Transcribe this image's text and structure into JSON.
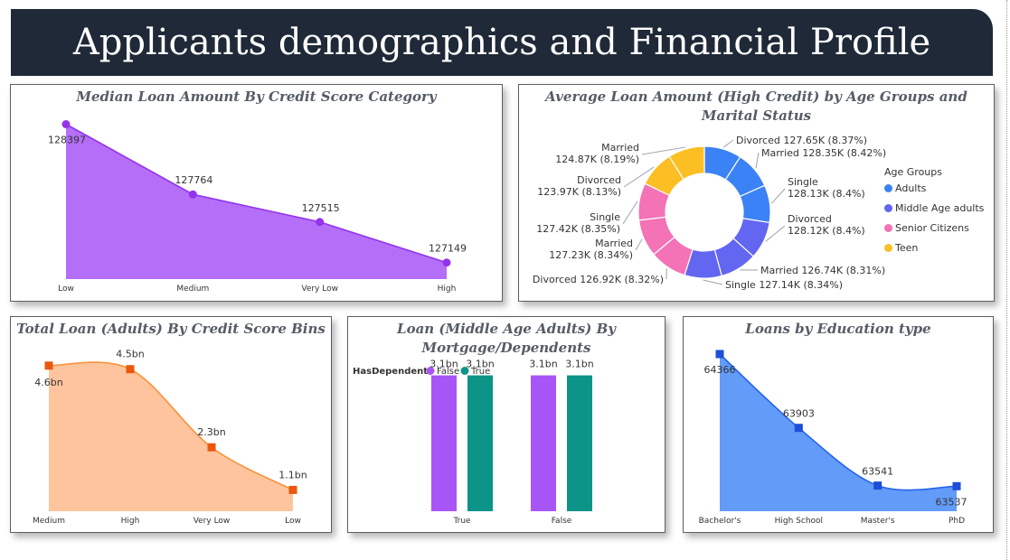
{
  "header": {
    "title": "Applicants demographics and Financial Profile"
  },
  "chart_data": [
    {
      "type": "area",
      "title": "Median Loan Amount By Credit Score Category",
      "categories": [
        "Low",
        "Medium",
        "Very Low",
        "High"
      ],
      "values": [
        128397,
        127764,
        127515,
        127149
      ],
      "labels": [
        "128397",
        "127764",
        "127515",
        "127149"
      ],
      "ylim": [
        127000,
        128450
      ],
      "color": "#a855f7"
    },
    {
      "type": "pie",
      "title": "Average Loan Amount (High Credit) by Age Groups and Marital Status",
      "legend_title": "Age Groups",
      "groups": [
        {
          "name": "Adults",
          "color": "#3b82f6"
        },
        {
          "name": "Middle Age adults",
          "color": "#6366f1"
        },
        {
          "name": "Senior Citizens",
          "color": "#f472b6"
        },
        {
          "name": "Teen",
          "color": "#fbbf24"
        }
      ],
      "slices": [
        {
          "group": "Adults",
          "status": "Divorced",
          "value": 127.65,
          "label": "Divorced 127.65K (8.37%)"
        },
        {
          "group": "Adults",
          "status": "Married",
          "value": 128.35,
          "label": "Married 128.35K (8.42%)"
        },
        {
          "group": "Adults",
          "status": "Single",
          "value": 128.13,
          "label": "Single 128.13K (8.4%)"
        },
        {
          "group": "Middle Age adults",
          "status": "Divorced",
          "value": 128.12,
          "label": "Divorced 128.12K (8.4%)"
        },
        {
          "group": "Middle Age adults",
          "status": "Married",
          "value": 126.74,
          "label": "Married 126.74K (8.31%)"
        },
        {
          "group": "Middle Age adults",
          "status": "Single",
          "value": 127.14,
          "label": "Single 127.14K (8.34%)"
        },
        {
          "group": "Senior Citizens",
          "status": "Divorced",
          "value": 126.92,
          "label": "Divorced 126.92K (8.32%)"
        },
        {
          "group": "Senior Citizens",
          "status": "Married",
          "value": 127.23,
          "label": "Married 127.23K (8.34%)"
        },
        {
          "group": "Senior Citizens",
          "status": "Single",
          "value": 127.42,
          "label": "Single 127.42K (8.35%)"
        },
        {
          "group": "Teen",
          "status": "Divorced",
          "value": 123.97,
          "label": "Divorced 123.97K (8.13%)"
        },
        {
          "group": "Teen",
          "status": "Married",
          "value": 124.87,
          "label": "Married 124.87K (8.19%)"
        },
        {
          "group": "Teen",
          "status": "Single",
          "value": 0,
          "label": ""
        }
      ],
      "slice_labels": [
        [
          "Divorced 127.65K (8.37%)"
        ],
        [
          "Married 128.35K (8.42%)"
        ],
        [
          "Single",
          "128.13K (8.4%)"
        ],
        [
          "Divorced",
          "128.12K (8.4%)"
        ],
        [
          "Married 126.74K (8.31%)"
        ],
        [
          "Single 127.14K (8.34%)"
        ],
        [
          "Divorced 126.92K (8.32%)"
        ],
        [
          "Married",
          "127.23K (8.34%)"
        ],
        [
          "Single",
          "127.42K (8.35%)"
        ],
        [
          "Divorced",
          "123.97K (8.13%)"
        ],
        [
          "Married",
          "124.87K (8.19%)"
        ]
      ]
    },
    {
      "type": "area",
      "title": "Total Loan (Adults) By Credit Score Bins",
      "categories": [
        "Medium",
        "High",
        "Very Low",
        "Low"
      ],
      "values": [
        4.6,
        4.5,
        2.3,
        1.1
      ],
      "labels": [
        "4.6bn",
        "4.5bn",
        "2.3bn",
        "1.1bn"
      ],
      "ylim": [
        0.5,
        4.9
      ],
      "color": "#f97316"
    },
    {
      "type": "bar",
      "title": "Loan (Middle Age Adults) By Mortgage/Dependents",
      "legend_title": "HasDependents",
      "categories": [
        "True",
        "False"
      ],
      "series": [
        {
          "name": "False",
          "color": "#a855f7",
          "values": [
            3.1,
            3.1
          ],
          "labels": [
            "3.1bn",
            "3.1bn"
          ]
        },
        {
          "name": "True",
          "color": "#0d9488",
          "values": [
            3.1,
            3.1
          ],
          "labels": [
            "3.1bn",
            "3.1bn"
          ]
        }
      ],
      "ylim": [
        0,
        3.4
      ]
    },
    {
      "type": "area",
      "title": "Loans by Education type",
      "categories": [
        "Bachelor's",
        "High School",
        "Master's",
        "PhD"
      ],
      "values": [
        64366,
        63903,
        63541,
        63537
      ],
      "labels": [
        "64366",
        "63903",
        "63541",
        "63537"
      ],
      "ylim": [
        63380,
        64400
      ],
      "color": "#1d4ed8"
    }
  ]
}
